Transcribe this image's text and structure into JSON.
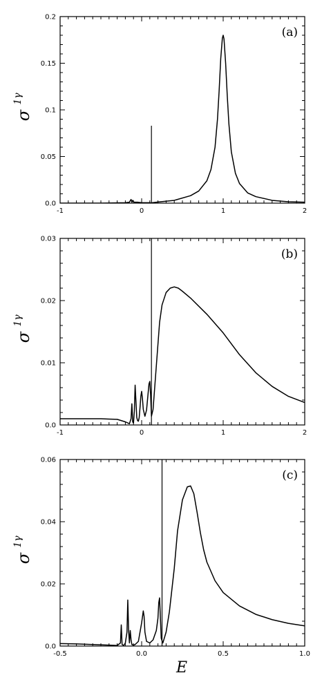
{
  "chart_data": [
    {
      "type": "line",
      "panel_label": "(a)",
      "ylabel": "σ",
      "ylabel_sup": "1γ",
      "xlabel": "",
      "xlim": [
        -1,
        2
      ],
      "ylim": [
        0,
        0.2
      ],
      "xticks": [
        -1,
        0,
        1,
        2
      ],
      "xtick_labels": [
        "-1",
        "0",
        "1",
        "2"
      ],
      "yticks": [
        0,
        0.05,
        0.1,
        0.15,
        0.2
      ],
      "ytick_labels": [
        "0.0",
        "0.05",
        "0.1",
        "0.15",
        "0.2"
      ],
      "grid": false,
      "series": [
        {
          "x": [
            -1.0,
            -0.5,
            -0.2,
            -0.15,
            -0.13,
            -0.12,
            -0.11,
            -0.1,
            -0.09,
            -0.05,
            0.0,
            0.1,
            0.12,
            0.13,
            0.2,
            0.4,
            0.6,
            0.7,
            0.8,
            0.85,
            0.9,
            0.93,
            0.95,
            0.97,
            0.99,
            1.0,
            1.01,
            1.03,
            1.05,
            1.07,
            1.1,
            1.15,
            1.2,
            1.3,
            1.4,
            1.6,
            1.8,
            2.0
          ],
          "y": [
            0.0,
            0.0,
            0.0005,
            0.001,
            0.004,
            0.001,
            0.003,
            0.0015,
            0.001,
            0.001,
            0.0005,
            0.0005,
            0.0,
            0.0005,
            0.0012,
            0.003,
            0.008,
            0.013,
            0.024,
            0.036,
            0.06,
            0.09,
            0.12,
            0.155,
            0.177,
            0.18,
            0.176,
            0.15,
            0.115,
            0.085,
            0.055,
            0.032,
            0.021,
            0.011,
            0.007,
            0.003,
            0.0015,
            0.001
          ]
        },
        {
          "x": [
            0.12,
            0.12
          ],
          "y": [
            0.0,
            0.083
          ]
        }
      ]
    },
    {
      "type": "line",
      "panel_label": "(b)",
      "ylabel": "σ",
      "ylabel_sup": "1γ",
      "xlabel": "",
      "xlim": [
        -1,
        2
      ],
      "ylim": [
        0,
        0.03
      ],
      "xticks": [
        -1,
        0,
        1,
        2
      ],
      "xtick_labels": [
        "-1",
        "0",
        "1",
        "2"
      ],
      "yticks": [
        0,
        0.01,
        0.02,
        0.03
      ],
      "ytick_labels": [
        "0.0",
        "0.01",
        "0.02",
        "0.03"
      ],
      "grid": false,
      "series": [
        {
          "x": [
            -1.0,
            -0.7,
            -0.5,
            -0.4,
            -0.3,
            -0.2,
            -0.15,
            -0.13,
            -0.12,
            -0.11,
            -0.1,
            -0.09,
            -0.08,
            -0.06,
            -0.05,
            -0.04,
            -0.03,
            -0.02,
            -0.01,
            0.0,
            0.01,
            0.02,
            0.04,
            0.06,
            0.08,
            0.09,
            0.1,
            0.11,
            0.12,
            0.14,
            0.16,
            0.18,
            0.2,
            0.22,
            0.25,
            0.3,
            0.35,
            0.4,
            0.45,
            0.5,
            0.6,
            0.8,
            1.0,
            1.2,
            1.4,
            1.6,
            1.8,
            2.0
          ],
          "y": [
            0.001,
            0.001,
            0.001,
            0.00095,
            0.0009,
            0.0005,
            0.0002,
            0.001,
            0.0034,
            0.0005,
            0.0003,
            0.0022,
            0.0064,
            0.0012,
            0.0007,
            0.0006,
            0.0012,
            0.0028,
            0.0046,
            0.0054,
            0.0042,
            0.0025,
            0.0014,
            0.0024,
            0.0052,
            0.0066,
            0.007,
            0.0048,
            0.0014,
            0.0025,
            0.006,
            0.0095,
            0.013,
            0.0165,
            0.0193,
            0.0213,
            0.022,
            0.0222,
            0.022,
            0.0215,
            0.0204,
            0.0178,
            0.0148,
            0.0113,
            0.0084,
            0.0062,
            0.0046,
            0.0036
          ]
        },
        {
          "x": [
            0.12,
            0.12
          ],
          "y": [
            0.0,
            0.03
          ]
        }
      ]
    },
    {
      "type": "line",
      "panel_label": "(c)",
      "ylabel": "σ",
      "ylabel_sup": "1γ",
      "xlabel": "E",
      "xlim": [
        -0.5,
        1.0
      ],
      "ylim": [
        0,
        0.06
      ],
      "xticks": [
        -0.5,
        0,
        0.5,
        1.0
      ],
      "xtick_labels": [
        "-0.5",
        "0.0",
        "0.5",
        "1.0"
      ],
      "yticks": [
        0,
        0.02,
        0.04,
        0.06
      ],
      "ytick_labels": [
        "0.0",
        "0.02",
        "0.04",
        "0.06"
      ],
      "grid": false,
      "series": [
        {
          "x": [
            -0.5,
            -0.4,
            -0.3,
            -0.2,
            -0.15,
            -0.13,
            -0.125,
            -0.12,
            -0.11,
            -0.1,
            -0.09,
            -0.085,
            -0.08,
            -0.075,
            -0.07,
            -0.065,
            -0.06,
            -0.05,
            -0.04,
            -0.02,
            0.0,
            0.01,
            0.015,
            0.02,
            0.03,
            0.05,
            0.07,
            0.09,
            0.1,
            0.105,
            0.11,
            0.115,
            0.12,
            0.13,
            0.15,
            0.17,
            0.2,
            0.22,
            0.25,
            0.28,
            0.3,
            0.32,
            0.34,
            0.36,
            0.38,
            0.4,
            0.45,
            0.5,
            0.6,
            0.7,
            0.8,
            0.9,
            1.0
          ],
          "y": [
            0.0008,
            0.0007,
            0.0005,
            0.0003,
            0.0002,
            0.001,
            0.0068,
            0.0005,
            0.0002,
            0.001,
            0.0045,
            0.0148,
            0.005,
            0.001,
            0.005,
            0.002,
            0.0005,
            0.0003,
            0.0005,
            0.0015,
            0.0075,
            0.0113,
            0.0095,
            0.0045,
            0.0015,
            0.001,
            0.002,
            0.005,
            0.009,
            0.014,
            0.0155,
            0.009,
            0.0025,
            0.001,
            0.0045,
            0.011,
            0.025,
            0.037,
            0.047,
            0.0512,
            0.0515,
            0.049,
            0.043,
            0.0365,
            0.031,
            0.027,
            0.021,
            0.0172,
            0.0129,
            0.0102,
            0.0085,
            0.0073,
            0.0065
          ]
        },
        {
          "x": [
            0.125,
            0.125
          ],
          "y": [
            0.0,
            0.06
          ]
        }
      ]
    }
  ]
}
